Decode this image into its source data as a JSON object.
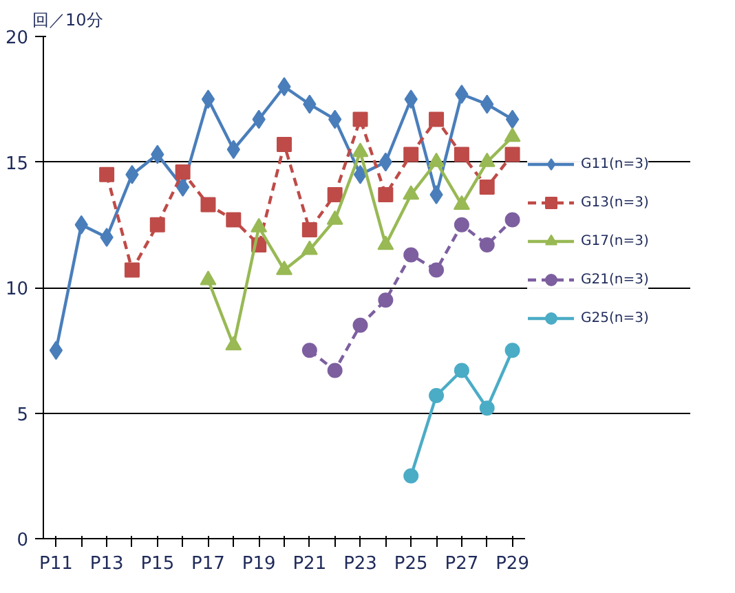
{
  "chart_data": {
    "type": "line",
    "ylabel": "回／10分",
    "categories": [
      "P11",
      null,
      "P13",
      null,
      "P15",
      null,
      "P17",
      null,
      "P19",
      null,
      "P21",
      null,
      "P23",
      null,
      "P25",
      null,
      "P27",
      null,
      "P29"
    ],
    "ylim": [
      0,
      20
    ],
    "yticks": [
      0,
      5,
      10,
      15,
      20
    ],
    "grid": "y",
    "legend": "right",
    "series": [
      {
        "name": "G11(n=3)",
        "color": "#4a7ebb",
        "marker": "diamond",
        "line_style": "solid",
        "values": [
          7.5,
          12.5,
          12.0,
          14.5,
          15.3,
          14.0,
          17.5,
          15.5,
          16.7,
          18.0,
          17.3,
          16.7,
          14.5,
          15.0,
          17.5,
          13.7,
          17.7,
          17.3,
          16.7
        ]
      },
      {
        "name": "G13(n=3)",
        "color": "#be4b48",
        "marker": "square",
        "line_style": "dashed",
        "values": [
          null,
          null,
          14.5,
          10.7,
          12.5,
          14.6,
          13.3,
          12.7,
          11.7,
          15.7,
          12.3,
          13.7,
          16.7,
          13.7,
          15.3,
          16.7,
          15.3,
          14.0,
          15.3
        ]
      },
      {
        "name": "G17(n=3)",
        "color": "#98b954",
        "marker": "triangle",
        "line_style": "solid",
        "values": [
          null,
          null,
          null,
          null,
          null,
          null,
          10.3,
          7.7,
          12.4,
          10.7,
          11.5,
          12.7,
          15.4,
          11.7,
          13.7,
          15.0,
          13.3,
          15.0,
          16.0
        ]
      },
      {
        "name": "G21(n=3)",
        "color": "#7d5fa0",
        "marker": "circle",
        "line_style": "dashed",
        "values": [
          null,
          null,
          null,
          null,
          null,
          null,
          null,
          null,
          null,
          null,
          7.5,
          6.7,
          8.5,
          9.5,
          11.3,
          10.7,
          12.5,
          11.7,
          12.7
        ]
      },
      {
        "name": "G25(n=3)",
        "color": "#4bacc6",
        "marker": "circle",
        "line_style": "solid",
        "values": [
          null,
          null,
          null,
          null,
          null,
          null,
          null,
          null,
          null,
          null,
          null,
          null,
          null,
          null,
          2.5,
          5.7,
          6.7,
          5.2,
          7.5
        ]
      }
    ]
  }
}
